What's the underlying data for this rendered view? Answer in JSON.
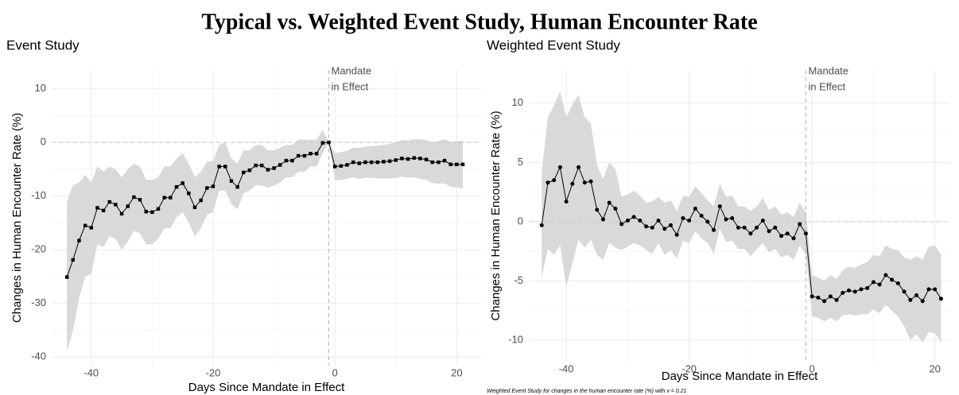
{
  "title": "Typical vs. Weighted Event Study, Human Encounter Rate",
  "chart_data": [
    {
      "type": "line",
      "title": "Event Study",
      "xlabel": "Days Since Mandate in Effect",
      "ylabel": "Changes in Human Encounter Rate (%)",
      "xlim": [
        -46.5,
        24
      ],
      "ylim": [
        -41.6,
        13.5
      ],
      "xticks": [
        -40,
        -20,
        0,
        20
      ],
      "yticks": [
        -40,
        -30,
        -20,
        -10,
        0,
        10
      ],
      "grid": true,
      "vline": -1,
      "hline": 0,
      "annotation": [
        "Mandate",
        "in Effect"
      ],
      "marker": "square",
      "color": "#000000",
      "band_color": "#d9d9d9",
      "x": [
        -44,
        -43,
        -42,
        -41,
        -40,
        -39,
        -38,
        -37,
        -36,
        -35,
        -34,
        -33,
        -32,
        -31,
        -30,
        -29,
        -28,
        -27,
        -26,
        -25,
        -24,
        -23,
        -22,
        -21,
        -20,
        -19,
        -18,
        -17,
        -16,
        -15,
        -14,
        -13,
        -12,
        -11,
        -10,
        -9,
        -8,
        -7,
        -6,
        -5,
        -4,
        -3,
        -2,
        -1,
        0,
        1,
        2,
        3,
        4,
        5,
        6,
        7,
        8,
        9,
        10,
        11,
        12,
        13,
        14,
        15,
        16,
        17,
        18,
        19,
        20,
        21
      ],
      "values": [
        -25.1,
        -21.9,
        -18.3,
        -15.5,
        -15.9,
        -12.2,
        -12.7,
        -11.1,
        -11.6,
        -13.3,
        -11.9,
        -10.2,
        -10.7,
        -12.9,
        -13.0,
        -12.4,
        -10.3,
        -10.3,
        -8.3,
        -7.6,
        -9.5,
        -12.1,
        -10.8,
        -8.5,
        -8.2,
        -4.5,
        -4.5,
        -7.2,
        -8.3,
        -5.6,
        -5.2,
        -4.3,
        -4.3,
        -5.1,
        -4.8,
        -4.2,
        -3.4,
        -3.4,
        -2.5,
        -2.5,
        -2.1,
        -2.1,
        -0.1,
        0,
        -4.5,
        -4.4,
        -4.2,
        -3.7,
        -3.9,
        -3.7,
        -3.7,
        -3.7,
        -3.6,
        -3.5,
        -3.3,
        -3.0,
        -3.1,
        -2.9,
        -3.0,
        -3.2,
        -3.7,
        -3.7,
        -3.4,
        -4.1,
        -4.1,
        -4.1
      ],
      "lower": [
        -39,
        -35,
        -29,
        -25,
        -24.5,
        -19,
        -19.5,
        -17.5,
        -18,
        -20,
        -18.5,
        -16.5,
        -17,
        -19,
        -19,
        -18,
        -16,
        -16,
        -14,
        -13,
        -15,
        -17.5,
        -16,
        -13.5,
        -13,
        -9,
        -9,
        -11.5,
        -12.5,
        -9.5,
        -9,
        -8,
        -8,
        -8.5,
        -8,
        -7.5,
        -6.5,
        -6.5,
        -5.5,
        -5.5,
        -4.5,
        -4.5,
        -2,
        0,
        -7,
        -7,
        -6.8,
        -6.5,
        -6.8,
        -6.6,
        -6.6,
        -6.7,
        -6.7,
        -6.7,
        -6.6,
        -6.4,
        -6.6,
        -6.5,
        -6.8,
        -7,
        -7.6,
        -7.7,
        -7.6,
        -8.3,
        -8.4,
        -8.6
      ],
      "upper": [
        -11,
        -8,
        -7.5,
        -6,
        -7.5,
        -4.5,
        -5.5,
        -4.5,
        -5,
        -6.5,
        -5,
        -4,
        -4.5,
        -7,
        -7,
        -6.5,
        -4.5,
        -4.5,
        -3,
        -2,
        -4,
        -6.5,
        -5.5,
        -3.5,
        -3.5,
        -0.5,
        0,
        -3,
        -4,
        -1.5,
        -1.5,
        -0.5,
        -0.5,
        -1.5,
        -1.5,
        -1,
        -0.5,
        -0.5,
        0.5,
        0.5,
        0.5,
        0.5,
        2.3,
        0,
        -2,
        -1.8,
        -1.6,
        -1,
        -1,
        -0.8,
        -0.7,
        -0.6,
        -0.5,
        -0.3,
        0,
        0.4,
        0.4,
        0.6,
        0.6,
        0.4,
        0,
        0.2,
        0.6,
        0.1,
        0.2,
        0.3
      ]
    },
    {
      "type": "line",
      "title": "Weighted Event Study",
      "xlabel": "Days Since Mandate in Effect",
      "ylabel": "Changes in Human Encounter Rate (%)",
      "caption": "Weighted Event Study for changes in the human encounter rate (%) with v = 0.21",
      "xlim": [
        -46.1,
        22.5
      ],
      "ylim": [
        -11.8,
        12.8
      ],
      "xticks": [
        -40,
        -20,
        0,
        20
      ],
      "yticks": [
        -10,
        -5,
        0,
        5,
        10
      ],
      "grid": true,
      "vline": -1,
      "hline": 0,
      "annotation": [
        "Mandate",
        "in Effect"
      ],
      "marker": "circle",
      "color": "#000000",
      "band_color": "#d9d9d9",
      "x": [
        -44,
        -43,
        -42,
        -41,
        -40,
        -39,
        -38,
        -37,
        -36,
        -35,
        -34,
        -33,
        -32,
        -31,
        -30,
        -29,
        -28,
        -27,
        -26,
        -25,
        -24,
        -23,
        -22,
        -21,
        -20,
        -19,
        -18,
        -17,
        -16,
        -15,
        -14,
        -13,
        -12,
        -11,
        -10,
        -9,
        -8,
        -7,
        -6,
        -5,
        -4,
        -3,
        -2,
        -1,
        0,
        1,
        2,
        3,
        4,
        5,
        6,
        7,
        8,
        9,
        10,
        11,
        12,
        13,
        14,
        15,
        16,
        17,
        18,
        19,
        20,
        21
      ],
      "values": [
        -0.3,
        3.3,
        3.5,
        4.6,
        1.7,
        3.2,
        4.6,
        3.3,
        3.4,
        1.0,
        0.2,
        1.6,
        1.1,
        -0.2,
        0.1,
        0.4,
        0.1,
        -0.4,
        -0.5,
        0.1,
        -0.6,
        -0.3,
        -1.1,
        0.3,
        0.1,
        1.1,
        0.5,
        0.0,
        -0.7,
        1.3,
        0.2,
        0.3,
        -0.5,
        -0.5,
        -1.0,
        -0.5,
        0.1,
        -0.8,
        -0.5,
        -1.2,
        -1.0,
        -1.4,
        -0.2,
        -1.0,
        -6.3,
        -6.4,
        -6.7,
        -6.3,
        -6.6,
        -6.0,
        -5.8,
        -5.9,
        -5.7,
        -5.6,
        -5.1,
        -5.3,
        -4.5,
        -4.9,
        -5.2,
        -5.9,
        -6.6,
        -6.2,
        -6.7,
        -5.7,
        -5.7,
        -6.5
      ],
      "lower": [
        -4.7,
        -2.3,
        -2.8,
        -2,
        -5.5,
        -3.5,
        -1.5,
        -2.2,
        -1.5,
        -2.8,
        -3.2,
        -1.8,
        -2.2,
        -2.4,
        -2.1,
        -1.8,
        -2,
        -2.4,
        -2.7,
        -1.8,
        -2.8,
        -2.4,
        -3.1,
        -1.6,
        -1.8,
        -0.8,
        -1.4,
        -1.8,
        -2.7,
        -0.6,
        -1.7,
        -1.6,
        -2.3,
        -2.3,
        -2.9,
        -2.3,
        -1.8,
        -2.6,
        -2.3,
        -3,
        -2.8,
        -3.2,
        -2,
        -2.8,
        -8,
        -8.1,
        -8.4,
        -8.1,
        -8.4,
        -7.9,
        -7.8,
        -7.9,
        -7.8,
        -7.8,
        -7.4,
        -7.7,
        -7,
        -7.5,
        -8,
        -8.8,
        -10,
        -9.5,
        -10.2,
        -9.3,
        -9.4,
        -10.2
      ],
      "upper": [
        4.2,
        8.8,
        9.8,
        11,
        8.8,
        9.9,
        10.7,
        8.8,
        8.3,
        4.8,
        3.6,
        5,
        4.4,
        2.1,
        2.3,
        2.6,
        2.2,
        1.6,
        1.7,
        2.1,
        1.6,
        1.8,
        0.9,
        2.2,
        2.1,
        3,
        2.4,
        1.8,
        1.3,
        3.2,
        2.1,
        2.2,
        1.3,
        1.3,
        0.9,
        1.3,
        2,
        1,
        1.3,
        0.6,
        0.8,
        0.4,
        1.6,
        0.8,
        -4.5,
        -4.7,
        -5,
        -4.5,
        -4.8,
        -4.1,
        -3.8,
        -3.9,
        -3.6,
        -3.4,
        -2.8,
        -2.9,
        -2,
        -2.3,
        -2.4,
        -3,
        -3.2,
        -2.9,
        -3.2,
        -2.1,
        -2,
        -2.8
      ]
    }
  ]
}
